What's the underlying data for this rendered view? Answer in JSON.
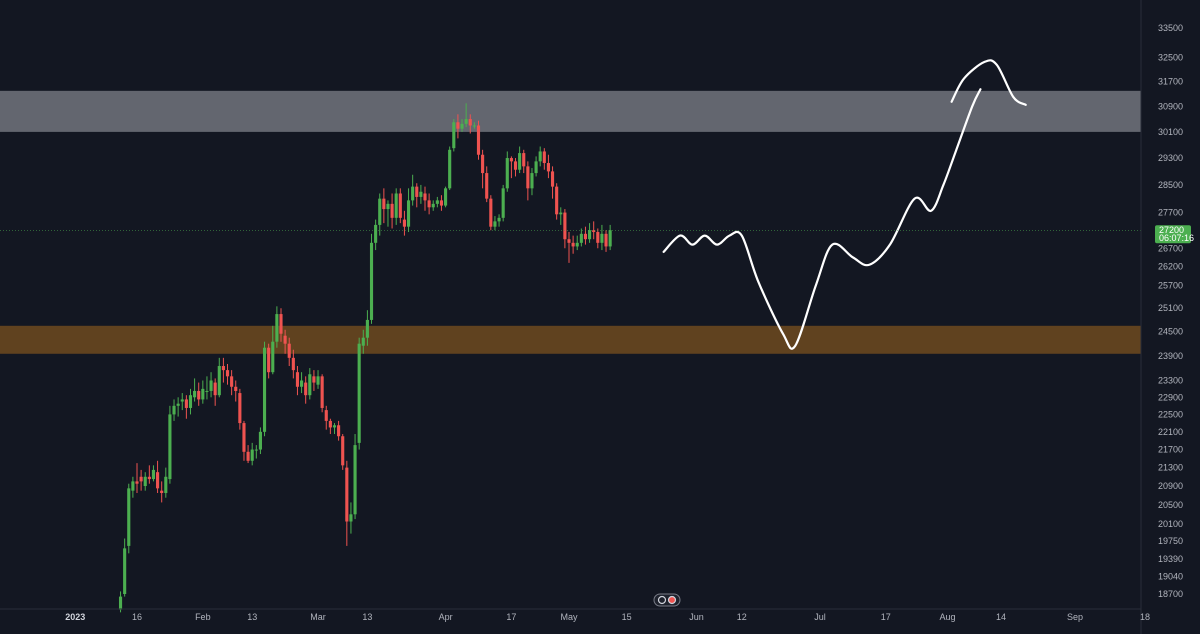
{
  "colors": {
    "background": "#131722",
    "bull": "#26a69a",
    "bull_candle": "#4caf50",
    "bear": "#ef5350",
    "resistance_zone": "#d1d4dc",
    "support_zone": "#a0661e",
    "drawing": "#ffffff",
    "price_badge": "#4caf50",
    "axis_text": "#b2b5be"
  },
  "chart_data": {
    "type": "candlestick",
    "y_axis": {
      "scale": "log",
      "ticks": [
        18700,
        19040,
        19390,
        19750,
        20100,
        20500,
        20900,
        21300,
        21700,
        22100,
        22500,
        22900,
        23300,
        23900,
        24500,
        25100,
        25700,
        26200,
        26700,
        27700,
        28500,
        29300,
        30100,
        30900,
        31700,
        32500,
        33500
      ],
      "range": [
        18300,
        34500
      ]
    },
    "x_axis": {
      "ticks": [
        {
          "label": "2023",
          "date": "2023-01-01",
          "bold": true
        },
        {
          "label": "16",
          "date": "2023-01-16"
        },
        {
          "label": "Feb",
          "date": "2023-02-01"
        },
        {
          "label": "13",
          "date": "2023-02-13"
        },
        {
          "label": "Mar",
          "date": "2023-03-01"
        },
        {
          "label": "13",
          "date": "2023-03-13"
        },
        {
          "label": "Apr",
          "date": "2023-04-01"
        },
        {
          "label": "17",
          "date": "2023-04-17"
        },
        {
          "label": "May",
          "date": "2023-05-01"
        },
        {
          "label": "15",
          "date": "2023-05-15"
        },
        {
          "label": "Jun",
          "date": "2023-06-01"
        },
        {
          "label": "12",
          "date": "2023-06-12"
        },
        {
          "label": "Jul",
          "date": "2023-07-01"
        },
        {
          "label": "17",
          "date": "2023-07-17"
        },
        {
          "label": "Aug",
          "date": "2023-08-01"
        },
        {
          "label": "14",
          "date": "2023-08-14"
        },
        {
          "label": "Sep",
          "date": "2023-09-01"
        },
        {
          "label": "18",
          "date": "2023-09-18"
        }
      ]
    },
    "current_price": {
      "price": "27200",
      "countdown": "06:07:16",
      "value": 27200
    },
    "zones": [
      {
        "name": "resistance",
        "from": 30100,
        "to": 31400
      },
      {
        "name": "support",
        "from": 23950,
        "to": 24650
      }
    ],
    "candles_start_date": "2023-01-12",
    "candles_end_date": "2023-05-24",
    "candles": [
      [
        18400,
        18650,
        18350,
        18750
      ],
      [
        18700,
        19600,
        18650,
        19800
      ],
      [
        19650,
        20850,
        19500,
        20950
      ],
      [
        20800,
        21000,
        20650,
        21100
      ],
      [
        21000,
        20950,
        20750,
        21400
      ],
      [
        21100,
        21000,
        20800,
        21250
      ],
      [
        20900,
        21100,
        20800,
        21200
      ],
      [
        21100,
        21050,
        20950,
        21350
      ],
      [
        21050,
        21250,
        21000,
        21350
      ],
      [
        21200,
        20850,
        20750,
        21450
      ],
      [
        20800,
        20750,
        20550,
        21000
      ],
      [
        20750,
        21100,
        20650,
        21300
      ],
      [
        21050,
        22500,
        20950,
        22700
      ],
      [
        22500,
        22700,
        22350,
        22850
      ],
      [
        22700,
        22750,
        22450,
        22900
      ],
      [
        22800,
        22850,
        22600,
        23000
      ],
      [
        22850,
        22650,
        22400,
        22950
      ],
      [
        22650,
        22950,
        22500,
        23100
      ],
      [
        22900,
        23050,
        22800,
        23350
      ],
      [
        23050,
        22850,
        22700,
        23250
      ],
      [
        22850,
        23100,
        22750,
        23300
      ],
      [
        23050,
        23050,
        22850,
        23400
      ],
      [
        23050,
        23300,
        22900,
        23500
      ],
      [
        23250,
        22950,
        22700,
        23350
      ],
      [
        22950,
        23650,
        22900,
        23850
      ],
      [
        23650,
        23550,
        23250,
        23850
      ],
      [
        23550,
        23400,
        23200,
        23700
      ],
      [
        23400,
        23150,
        22950,
        23550
      ],
      [
        23150,
        23050,
        22800,
        23300
      ],
      [
        23000,
        22300,
        22150,
        23100
      ],
      [
        22300,
        21650,
        21450,
        22350
      ],
      [
        21650,
        21450,
        21400,
        21800
      ],
      [
        21450,
        21700,
        21350,
        21850
      ],
      [
        21700,
        21700,
        21500,
        21800
      ],
      [
        21700,
        22100,
        21600,
        22200
      ],
      [
        22100,
        24100,
        22000,
        24250
      ],
      [
        24100,
        23500,
        23350,
        24200
      ],
      [
        23500,
        24250,
        23450,
        24650
      ],
      [
        24250,
        24950,
        24100,
        25150
      ],
      [
        24950,
        24450,
        24250,
        25100
      ],
      [
        24400,
        24200,
        23950,
        24550
      ],
      [
        24200,
        23850,
        23650,
        24350
      ],
      [
        23850,
        23550,
        23350,
        24050
      ],
      [
        23500,
        23150,
        22950,
        23650
      ],
      [
        23150,
        23300,
        23000,
        23500
      ],
      [
        23250,
        22950,
        22750,
        23400
      ],
      [
        22950,
        23450,
        22850,
        23600
      ],
      [
        23400,
        23250,
        23050,
        23550
      ],
      [
        23200,
        23400,
        23100,
        23550
      ],
      [
        23400,
        22650,
        22550,
        23450
      ],
      [
        22600,
        22350,
        22150,
        22700
      ],
      [
        22350,
        22200,
        22050,
        22400
      ],
      [
        22200,
        22250,
        22050,
        22300
      ],
      [
        22250,
        22000,
        21900,
        22350
      ],
      [
        22000,
        21350,
        21250,
        22050
      ],
      [
        21300,
        20150,
        19650,
        21450
      ],
      [
        20150,
        20300,
        19900,
        20550
      ],
      [
        20300,
        21800,
        20200,
        22050
      ],
      [
        21850,
        24200,
        21700,
        24350
      ],
      [
        24150,
        24350,
        23950,
        24550
      ],
      [
        24350,
        24800,
        24150,
        25050
      ],
      [
        24800,
        26850,
        24700,
        27100
      ],
      [
        26850,
        27350,
        26650,
        27500
      ],
      [
        27350,
        28100,
        27050,
        28250
      ],
      [
        28100,
        27800,
        27400,
        28400
      ],
      [
        27800,
        27950,
        27300,
        28050
      ],
      [
        27950,
        27550,
        27250,
        28250
      ],
      [
        27550,
        28250,
        27350,
        28400
      ],
      [
        28250,
        27550,
        27400,
        28400
      ],
      [
        27500,
        27300,
        27050,
        27750
      ],
      [
        27300,
        28050,
        27150,
        28400
      ],
      [
        28050,
        28450,
        27900,
        28800
      ],
      [
        28450,
        28150,
        27850,
        28550
      ],
      [
        28150,
        28300,
        27950,
        28500
      ],
      [
        28250,
        28050,
        27750,
        28450
      ],
      [
        28050,
        27850,
        27650,
        28250
      ],
      [
        27850,
        27950,
        27750,
        28050
      ],
      [
        27950,
        28050,
        27850,
        28150
      ],
      [
        28050,
        27900,
        27750,
        28200
      ],
      [
        27900,
        28400,
        27850,
        28450
      ],
      [
        28400,
        29550,
        28350,
        29650
      ],
      [
        29600,
        30400,
        29500,
        30500
      ],
      [
        30400,
        30200,
        29900,
        30650
      ],
      [
        30200,
        30350,
        30100,
        30500
      ],
      [
        30350,
        30500,
        30250,
        31000
      ],
      [
        30500,
        30300,
        30050,
        30650
      ],
      [
        30300,
        30300,
        30200,
        30400
      ],
      [
        30300,
        29400,
        29250,
        30450
      ],
      [
        29400,
        28850,
        28400,
        29550
      ],
      [
        28850,
        28100,
        28000,
        29050
      ],
      [
        28100,
        27300,
        27200,
        28200
      ],
      [
        27300,
        27450,
        27200,
        27600
      ],
      [
        27450,
        27550,
        27300,
        27650
      ],
      [
        27550,
        28400,
        27450,
        28500
      ],
      [
        28400,
        29300,
        28300,
        29500
      ],
      [
        29300,
        29200,
        28700,
        29350
      ],
      [
        29200,
        28950,
        28750,
        29300
      ],
      [
        28950,
        29450,
        28850,
        29650
      ],
      [
        29450,
        29050,
        28850,
        29550
      ],
      [
        29050,
        28400,
        28050,
        29200
      ],
      [
        28400,
        28850,
        28200,
        29000
      ],
      [
        28850,
        29200,
        28750,
        29350
      ],
      [
        29200,
        29500,
        29050,
        29650
      ],
      [
        29500,
        29150,
        28950,
        29600
      ],
      [
        29150,
        28900,
        28700,
        29400
      ],
      [
        28900,
        28450,
        28100,
        29050
      ],
      [
        28450,
        27650,
        27500,
        28550
      ],
      [
        27650,
        27700,
        27350,
        27850
      ],
      [
        27700,
        26950,
        26700,
        27800
      ],
      [
        26950,
        26850,
        26300,
        27150
      ],
      [
        26850,
        26750,
        26550,
        27050
      ],
      [
        26750,
        26850,
        26650,
        27050
      ],
      [
        26850,
        27100,
        26750,
        27250
      ],
      [
        27100,
        26950,
        26800,
        27300
      ],
      [
        26950,
        27200,
        26850,
        27400
      ],
      [
        27200,
        27150,
        26950,
        27450
      ],
      [
        27150,
        26850,
        26700,
        27250
      ],
      [
        26850,
        27100,
        26650,
        27350
      ],
      [
        27100,
        26750,
        26600,
        27200
      ],
      [
        26750,
        27200,
        26650,
        27350
      ]
    ],
    "projection_path": [
      {
        "date": "2023-05-24",
        "price": 26600
      },
      {
        "date": "2023-05-28",
        "price": 27050
      },
      {
        "date": "2023-05-31",
        "price": 26800
      },
      {
        "date": "2023-06-03",
        "price": 27050
      },
      {
        "date": "2023-06-06",
        "price": 26800
      },
      {
        "date": "2023-06-09",
        "price": 27050
      },
      {
        "date": "2023-06-12",
        "price": 27050
      },
      {
        "date": "2023-06-16",
        "price": 25800
      },
      {
        "date": "2023-06-22",
        "price": 24450
      },
      {
        "date": "2023-06-25",
        "price": 24150
      },
      {
        "date": "2023-06-30",
        "price": 25700
      },
      {
        "date": "2023-07-04",
        "price": 26800
      },
      {
        "date": "2023-07-09",
        "price": 26450
      },
      {
        "date": "2023-07-13",
        "price": 26250
      },
      {
        "date": "2023-07-18",
        "price": 26800
      },
      {
        "date": "2023-07-24",
        "price": 28100
      },
      {
        "date": "2023-07-28",
        "price": 27750
      },
      {
        "date": "2023-07-31",
        "price": 28500
      },
      {
        "date": "2023-08-03",
        "price": 29500
      },
      {
        "date": "2023-08-07",
        "price": 30900
      },
      {
        "date": "2023-08-09",
        "price": 31450
      }
    ],
    "projection_path_2": [
      {
        "date": "2023-08-02",
        "price": 31050
      },
      {
        "date": "2023-08-05",
        "price": 31800
      },
      {
        "date": "2023-08-10",
        "price": 32350
      },
      {
        "date": "2023-08-13",
        "price": 32250
      },
      {
        "date": "2023-08-17",
        "price": 31200
      },
      {
        "date": "2023-08-20",
        "price": 30950
      }
    ]
  }
}
